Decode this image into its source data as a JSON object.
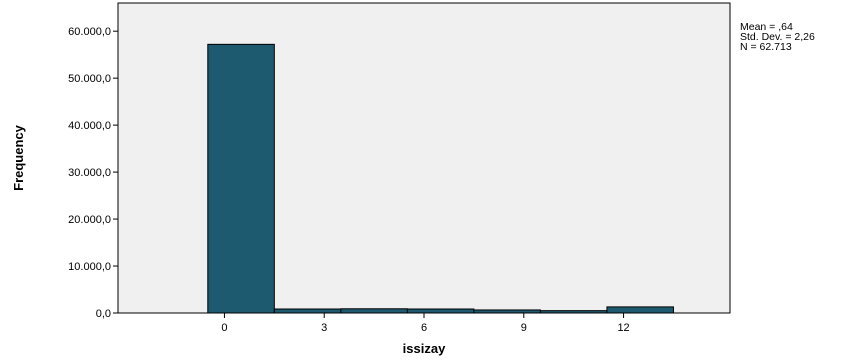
{
  "chart_data": {
    "type": "bar",
    "histogram": true,
    "xlabel": "issizay",
    "ylabel": "Frequency",
    "ylim": [
      0,
      66000
    ],
    "xlim": [
      -3.2,
      15.2
    ],
    "bin_width": 2,
    "bins": [
      {
        "x0": -0.5,
        "x1": 1.5,
        "value": 57200
      },
      {
        "x0": 1.5,
        "x1": 3.5,
        "value": 850
      },
      {
        "x0": 3.5,
        "x1": 5.5,
        "value": 900
      },
      {
        "x0": 5.5,
        "x1": 7.5,
        "value": 850
      },
      {
        "x0": 7.5,
        "x1": 9.5,
        "value": 650
      },
      {
        "x0": 9.5,
        "x1": 11.5,
        "value": 500
      },
      {
        "x0": 11.5,
        "x1": 13.5,
        "value": 1300
      }
    ],
    "y_ticks": [
      {
        "value": 0,
        "label": "0,0"
      },
      {
        "value": 10000,
        "label": "10.000,0"
      },
      {
        "value": 20000,
        "label": "20.000,0"
      },
      {
        "value": 30000,
        "label": "30.000,0"
      },
      {
        "value": 40000,
        "label": "40.000,0"
      },
      {
        "value": 50000,
        "label": "50.000,0"
      },
      {
        "value": 60000,
        "label": "60.000,0"
      }
    ],
    "x_ticks": [
      {
        "value": 0,
        "label": "0"
      },
      {
        "value": 3,
        "label": "3"
      },
      {
        "value": 6,
        "label": "6"
      },
      {
        "value": 9,
        "label": "9"
      },
      {
        "value": 12,
        "label": "12"
      }
    ],
    "stats": {
      "mean": "Mean = ,64",
      "std_dev": "Std. Dev. = 2,26",
      "n": "N = 62.713"
    },
    "colors": {
      "bar_fill": "#1d5a70",
      "bar_stroke": "#000000",
      "plot_background": "#f0f0f0"
    },
    "grid": false,
    "legend": "none"
  }
}
